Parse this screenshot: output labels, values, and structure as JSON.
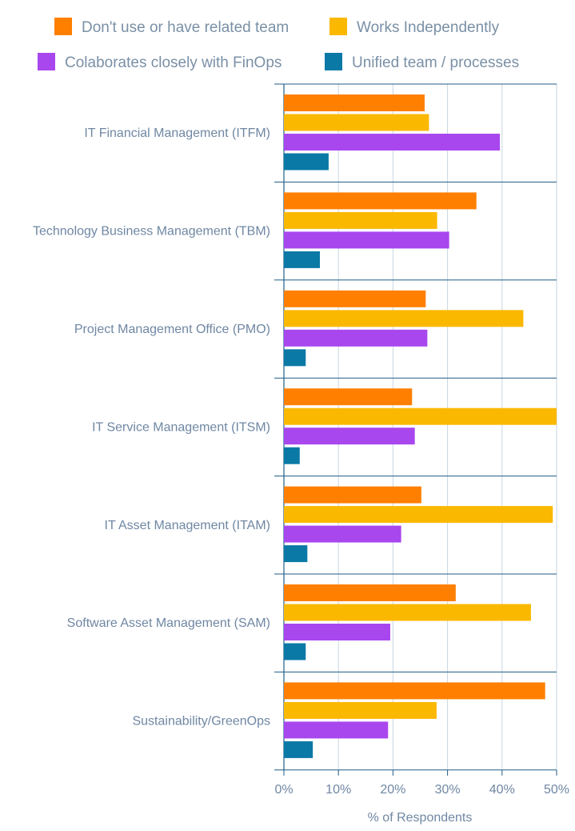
{
  "chart_data": {
    "type": "bar",
    "orientation": "horizontal",
    "categories": [
      "IT Financial Management (ITFM)",
      "Technology Business Management (TBM)",
      "Project Management Office (PMO)",
      "IT Service Management (ITSM)",
      "IT Asset Management (ITAM)",
      "Software Asset Management (SAM)",
      "Sustainability/GreenOps"
    ],
    "series": [
      {
        "name": "Don't use or have related team",
        "color": "#ff7f00",
        "values": [
          25.8,
          35.3,
          26.0,
          23.5,
          25.2,
          31.5,
          47.9
        ]
      },
      {
        "name": "Works Independently",
        "color": "#fbb800",
        "values": [
          26.6,
          28.1,
          43.9,
          50.0,
          49.3,
          45.3,
          28.0
        ]
      },
      {
        "name": "Colaborates closely with FinOps",
        "color": "#a947ee",
        "values": [
          39.6,
          30.3,
          26.3,
          24.0,
          21.5,
          19.5,
          19.1
        ]
      },
      {
        "name": "Unified team / processes",
        "color": "#0a79a6",
        "values": [
          8.2,
          6.6,
          4.0,
          2.9,
          4.3,
          4.0,
          5.3
        ]
      }
    ],
    "title": "",
    "xlabel": "% of Respondents",
    "ylabel": "",
    "xlim": [
      0,
      50
    ],
    "xticks": [
      0,
      10,
      20,
      30,
      40,
      50
    ],
    "xtick_labels": [
      "0%",
      "10%",
      "20%",
      "30%",
      "40%",
      "50%"
    ],
    "grid": true,
    "legend_position": "top"
  }
}
